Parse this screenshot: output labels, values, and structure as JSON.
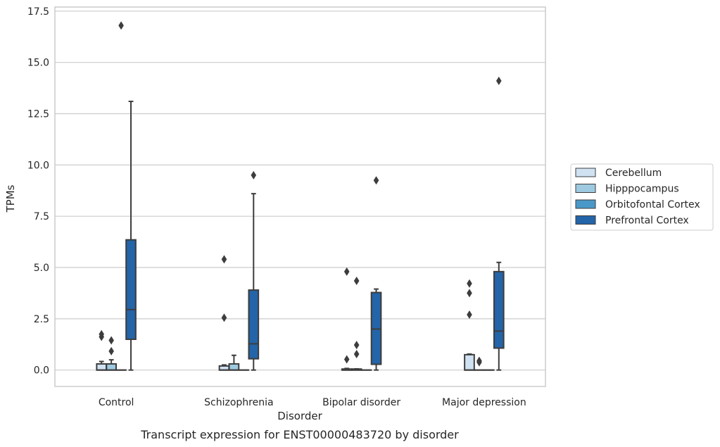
{
  "chart_data": {
    "type": "box",
    "xlabel": "Disorder",
    "ylabel": "TPMs",
    "caption": "Transcript expression for ENST00000483720 by disorder",
    "ylim": [
      -0.8,
      17.7
    ],
    "yticks": [
      "0.0",
      "2.5",
      "5.0",
      "7.5",
      "10.0",
      "12.5",
      "15.0",
      "17.5"
    ],
    "ytick_values": [
      0,
      2.5,
      5,
      7.5,
      10,
      12.5,
      15,
      17.5
    ],
    "grid": "horizontal",
    "legend_position": "right",
    "categories": [
      "Control",
      "Schizophrenia",
      "Bipolar disorder",
      "Major depression"
    ],
    "series": [
      {
        "name": "Cerebellum",
        "color": "#d0e1f2",
        "boxes": [
          {
            "whisker_low": 0,
            "q1": 0,
            "median": 0,
            "q3": 0.3,
            "whisker_high": 0.42,
            "outliers": [
              1.75,
              1.62
            ]
          },
          {
            "whisker_low": 0,
            "q1": 0,
            "median": 0,
            "q3": 0.2,
            "whisker_high": 0.25,
            "outliers": [
              5.4,
              2.55
            ]
          },
          {
            "whisker_low": 0,
            "q1": 0,
            "median": 0,
            "q3": 0.05,
            "whisker_high": 0.08,
            "outliers": [
              4.8,
              0.52
            ]
          },
          {
            "whisker_low": 0,
            "q1": 0,
            "median": 0,
            "q3": 0.75,
            "whisker_high": 0.78,
            "outliers": [
              4.22,
              3.75,
              2.7
            ]
          }
        ]
      },
      {
        "name": "Hipppocampus",
        "color": "#9ecae1",
        "boxes": [
          {
            "whisker_low": 0,
            "q1": 0,
            "median": 0,
            "q3": 0.3,
            "whisker_high": 0.5,
            "outliers": [
              1.45,
              0.92
            ]
          },
          {
            "whisker_low": 0,
            "q1": 0,
            "median": 0,
            "q3": 0.3,
            "whisker_high": 0.72,
            "outliers": []
          },
          {
            "whisker_low": 0,
            "q1": 0,
            "median": 0,
            "q3": 0.05,
            "whisker_high": 0.06,
            "outliers": [
              4.35,
              1.22,
              0.78
            ]
          },
          {
            "whisker_low": 0,
            "q1": 0,
            "median": 0,
            "q3": 0,
            "whisker_high": 0,
            "outliers": [
              0.45,
              0.38
            ]
          }
        ]
      },
      {
        "name": "Orbitofontal Cortex",
        "color": "#4a98c9",
        "boxes": [
          {
            "whisker_low": 0,
            "q1": 0,
            "median": 0,
            "q3": 0,
            "whisker_high": 0,
            "outliers": [
              16.8
            ]
          },
          {
            "whisker_low": 0,
            "q1": 0,
            "median": 0,
            "q3": 0,
            "whisker_high": 0,
            "outliers": []
          },
          {
            "whisker_low": 0,
            "q1": 0,
            "median": 0,
            "q3": 0,
            "whisker_high": 0,
            "outliers": []
          },
          {
            "whisker_low": 0,
            "q1": 0,
            "median": 0,
            "q3": 0,
            "whisker_high": 0,
            "outliers": []
          }
        ]
      },
      {
        "name": "Prefrontal Cortex",
        "color": "#2464a8",
        "boxes": [
          {
            "whisker_low": 0,
            "q1": 1.5,
            "median": 2.95,
            "q3": 6.35,
            "whisker_high": 13.1,
            "outliers": []
          },
          {
            "whisker_low": 0,
            "q1": 0.55,
            "median": 1.28,
            "q3": 3.9,
            "whisker_high": 8.6,
            "outliers": [
              9.5
            ]
          },
          {
            "whisker_low": 0,
            "q1": 0.28,
            "median": 2.0,
            "q3": 3.78,
            "whisker_high": 3.95,
            "outliers": [
              9.25
            ]
          },
          {
            "whisker_low": 0,
            "q1": 1.07,
            "median": 1.9,
            "q3": 4.8,
            "whisker_high": 5.25,
            "outliers": [
              14.1
            ]
          }
        ]
      }
    ]
  }
}
